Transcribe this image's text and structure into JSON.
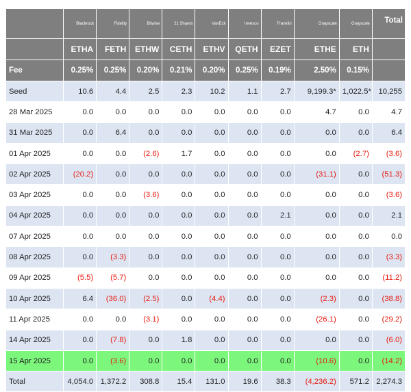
{
  "columns": [
    {
      "issuer": "Blackrock",
      "ticker": "ETHA",
      "fee": "0.25%"
    },
    {
      "issuer": "Fidelity",
      "ticker": "FETH",
      "fee": "0.25%"
    },
    {
      "issuer": "Bitwise",
      "ticker": "ETHW",
      "fee": "0.20%"
    },
    {
      "issuer": "21 Shares",
      "ticker": "CETH",
      "fee": "0.21%"
    },
    {
      "issuer": "VanEck",
      "ticker": "ETHV",
      "fee": "0.20%"
    },
    {
      "issuer": "Invesco",
      "ticker": "QETH",
      "fee": "0.25%"
    },
    {
      "issuer": "Franklin",
      "ticker": "EZET",
      "fee": "0.19%"
    },
    {
      "issuer": "Grayscale",
      "ticker": "ETHE",
      "fee": "2.50%"
    },
    {
      "issuer": "Grayscale",
      "ticker": "ETH",
      "fee": "0.15%"
    }
  ],
  "total_header": "Total",
  "fee_label": "Fee",
  "rows": [
    {
      "label": "Seed",
      "values": [
        "10.6",
        "4.4",
        "2.5",
        "2.3",
        "10.2",
        "1.1",
        "2.7",
        "9,199.3*",
        "1,022.5*",
        "10,255"
      ]
    },
    {
      "label": "28 Mar 2025",
      "values": [
        "0.0",
        "0.0",
        "0.0",
        "0.0",
        "0.0",
        "0.0",
        "0.0",
        "4.7",
        "0.0",
        "4.7"
      ]
    },
    {
      "label": "31 Mar 2025",
      "values": [
        "0.0",
        "6.4",
        "0.0",
        "0.0",
        "0.0",
        "0.0",
        "0.0",
        "0.0",
        "0.0",
        "6.4"
      ]
    },
    {
      "label": "01 Apr 2025",
      "values": [
        "0.0",
        "0.0",
        "(2.6)",
        "1.7",
        "0.0",
        "0.0",
        "0.0",
        "0.0",
        "(2.7)",
        "(3.6)"
      ]
    },
    {
      "label": "02 Apr 2025",
      "values": [
        "(20.2)",
        "0.0",
        "0.0",
        "0.0",
        "0.0",
        "0.0",
        "0.0",
        "(31.1)",
        "0.0",
        "(51.3)"
      ]
    },
    {
      "label": "03 Apr 2025",
      "values": [
        "0.0",
        "0.0",
        "(3.6)",
        "0.0",
        "0.0",
        "0.0",
        "0.0",
        "0.0",
        "0.0",
        "(3.6)"
      ]
    },
    {
      "label": "04 Apr 2025",
      "values": [
        "0.0",
        "0.0",
        "0.0",
        "0.0",
        "0.0",
        "0.0",
        "2.1",
        "0.0",
        "0.0",
        "2.1"
      ]
    },
    {
      "label": "07 Apr 2025",
      "values": [
        "0.0",
        "0.0",
        "0.0",
        "0.0",
        "0.0",
        "0.0",
        "0.0",
        "0.0",
        "0.0",
        "0.0"
      ]
    },
    {
      "label": "08 Apr 2025",
      "values": [
        "0.0",
        "(3.3)",
        "0.0",
        "0.0",
        "0.0",
        "0.0",
        "0.0",
        "0.0",
        "0.0",
        "(3.3)"
      ]
    },
    {
      "label": "09 Apr 2025",
      "values": [
        "(5.5)",
        "(5.7)",
        "0.0",
        "0.0",
        "0.0",
        "0.0",
        "0.0",
        "0.0",
        "0.0",
        "(11.2)"
      ]
    },
    {
      "label": "10 Apr 2025",
      "values": [
        "6.4",
        "(36.0)",
        "(2.5)",
        "0.0",
        "(4.4)",
        "0.0",
        "0.0",
        "(2.3)",
        "0.0",
        "(38.8)"
      ]
    },
    {
      "label": "11 Apr 2025",
      "values": [
        "0.0",
        "0.0",
        "(3.1)",
        "0.0",
        "0.0",
        "0.0",
        "0.0",
        "(26.1)",
        "0.0",
        "(29.2)"
      ]
    },
    {
      "label": "14 Apr 2025",
      "values": [
        "0.0",
        "(7.8)",
        "0.0",
        "1.8",
        "0.0",
        "0.0",
        "0.0",
        "0.0",
        "0.0",
        "(6.0)"
      ]
    },
    {
      "label": "15 Apr 2025",
      "values": [
        "0.0",
        "(3.6)",
        "0.0",
        "0.0",
        "0.0",
        "0.0",
        "0.0",
        "(10.6)",
        "0.0",
        "(14.2)"
      ]
    },
    {
      "label": "Total",
      "values": [
        "4,054.0",
        "1,372.2",
        "308.8",
        "15.4",
        "131.0",
        "19.6",
        "38.3",
        "(4,236.2)",
        "571.2",
        "2,274.3"
      ]
    }
  ],
  "colors": {
    "header_bg": "#7f7f7f",
    "alt_row_bg": "#dde5f3",
    "highlight_row_bg": "#7cf77c",
    "negative_text": "#e8180c"
  }
}
